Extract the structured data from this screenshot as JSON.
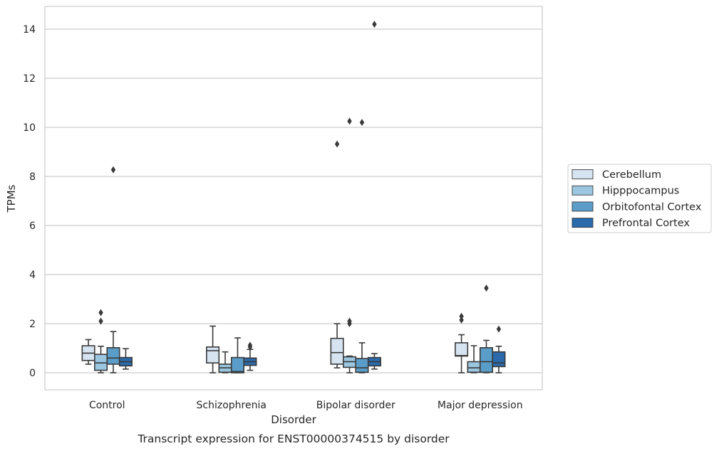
{
  "chart_data": {
    "type": "box",
    "caption": "Transcript expression for ENST00000374515 by disorder",
    "xlabel": "Disorder",
    "ylabel": "TPMs",
    "ylim": [
      -0.7,
      14.9
    ],
    "yticks": [
      0,
      2,
      4,
      6,
      8,
      10,
      12,
      14
    ],
    "grid": true,
    "legend_position": "right",
    "categories": [
      "Control",
      "Schizophrenia",
      "Bipolar disorder",
      "Major depression"
    ],
    "series": [
      {
        "name": "Cerebellum",
        "color": "#d6e4f1",
        "boxes": [
          {
            "whisker_low": 0.35,
            "q1": 0.5,
            "median": 0.8,
            "q3": 1.1,
            "whisker_high": 1.35,
            "outliers": []
          },
          {
            "whisker_low": 0.0,
            "q1": 0.4,
            "median": 0.9,
            "q3": 1.05,
            "whisker_high": 1.9,
            "outliers": []
          },
          {
            "whisker_low": 0.2,
            "q1": 0.35,
            "median": 0.82,
            "q3": 1.4,
            "whisker_high": 2.0,
            "outliers": [
              9.32
            ]
          },
          {
            "whisker_low": 0.0,
            "q1": 0.68,
            "median": 0.7,
            "q3": 1.22,
            "whisker_high": 1.55,
            "outliers": [
              2.15,
              2.3
            ]
          }
        ]
      },
      {
        "name": "Hipppocampus",
        "color": "#9ac6e0",
        "boxes": [
          {
            "whisker_low": 0.0,
            "q1": 0.1,
            "median": 0.4,
            "q3": 0.75,
            "whisker_high": 1.08,
            "outliers": [
              2.1,
              2.45
            ]
          },
          {
            "whisker_low": 0.0,
            "q1": 0.02,
            "median": 0.2,
            "q3": 0.35,
            "whisker_high": 0.85,
            "outliers": []
          },
          {
            "whisker_low": 0.0,
            "q1": 0.22,
            "median": 0.45,
            "q3": 0.65,
            "whisker_high": 0.68,
            "outliers": [
              2.0,
              2.1,
              10.25
            ]
          },
          {
            "whisker_low": 0.0,
            "q1": 0.02,
            "median": 0.2,
            "q3": 0.45,
            "whisker_high": 1.1,
            "outliers": []
          }
        ]
      },
      {
        "name": "Orbitofontal Cortex",
        "color": "#5b9dc9",
        "boxes": [
          {
            "whisker_low": 0.0,
            "q1": 0.35,
            "median": 0.6,
            "q3": 1.02,
            "whisker_high": 1.68,
            "outliers": [
              8.27
            ]
          },
          {
            "whisker_low": 0.0,
            "q1": 0.0,
            "median": 0.05,
            "q3": 0.62,
            "whisker_high": 1.42,
            "outliers": []
          },
          {
            "whisker_low": 0.0,
            "q1": 0.02,
            "median": 0.2,
            "q3": 0.58,
            "whisker_high": 1.22,
            "outliers": [
              10.2
            ]
          },
          {
            "whisker_low": 0.0,
            "q1": 0.02,
            "median": 0.45,
            "q3": 1.02,
            "whisker_high": 1.32,
            "outliers": [
              3.45
            ]
          }
        ]
      },
      {
        "name": "Prefrontal Cortex",
        "color": "#2b6aab",
        "boxes": [
          {
            "whisker_low": 0.15,
            "q1": 0.28,
            "median": 0.45,
            "q3": 0.62,
            "whisker_high": 0.98,
            "outliers": []
          },
          {
            "whisker_low": 0.1,
            "q1": 0.3,
            "median": 0.45,
            "q3": 0.6,
            "whisker_high": 0.95,
            "outliers": [
              1.05,
              1.12
            ]
          },
          {
            "whisker_low": 0.15,
            "q1": 0.28,
            "median": 0.45,
            "q3": 0.62,
            "whisker_high": 0.78,
            "outliers": [
              14.2
            ]
          },
          {
            "whisker_low": 0.0,
            "q1": 0.25,
            "median": 0.4,
            "q3": 0.85,
            "whisker_high": 1.08,
            "outliers": [
              1.78
            ]
          }
        ]
      }
    ]
  }
}
